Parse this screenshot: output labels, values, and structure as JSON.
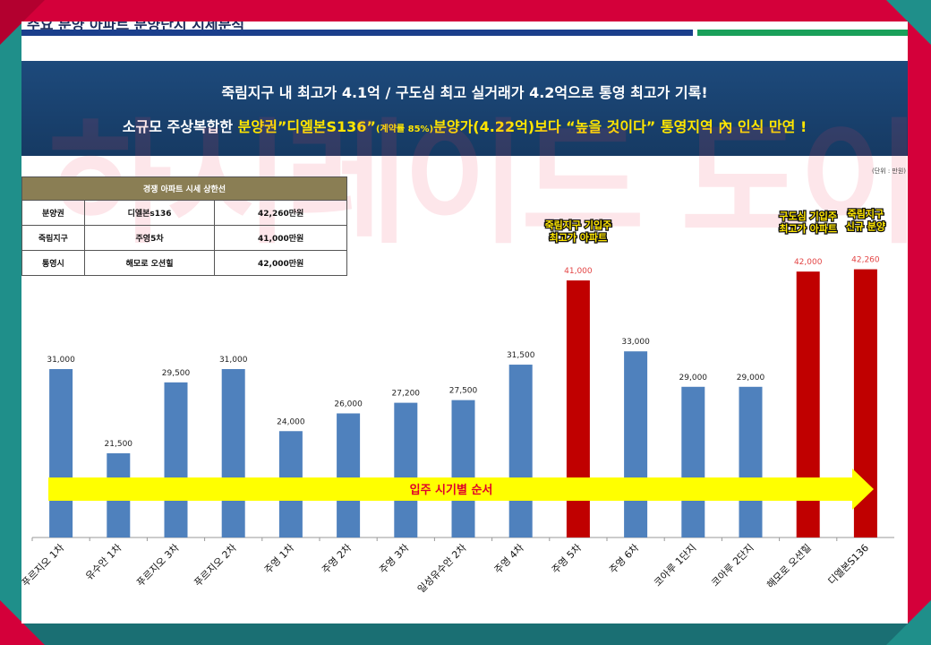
{
  "header": {
    "title": "주요 분양 아파트 분양단지 시세분석"
  },
  "banner": {
    "line1": "죽림지구 내 최고가 4.1억 / 구도심 최고 실거래가 4.2억으로 통영 최고가 기록!",
    "line2_prefix": "소규모 주상복합한 ",
    "line2_highlight": "분양권",
    "line2_name": "”디엘본S136”",
    "line2_small": "(계약률 85%)",
    "line2_mid": "분양가(4.22억)보다 ",
    "line2_quote": "“높을 것이다”",
    "line2_suffix": " 통영지역 內 인식 만연 !"
  },
  "unit_label": "(단위 : 만원)",
  "table": {
    "title": "경쟁 아파트 시세 상한선",
    "rows": [
      {
        "category": "분양권",
        "name": "디엘본s136",
        "price": "42,260만원"
      },
      {
        "category": "죽림지구",
        "name": "주영5차",
        "price": "41,000만원"
      },
      {
        "category": "통영시",
        "name": "해모로 오션힐",
        "price": "42,000만원"
      }
    ]
  },
  "watermark": "하시레이드 도이",
  "chart_data": {
    "type": "bar",
    "categories": [
      "푸르지오 1차",
      "유수안 1차",
      "푸르지오 3차",
      "푸르지오 2차",
      "주영 1차",
      "주영 2차",
      "주영 3차",
      "일성유수안 2차",
      "주영 4차",
      "주영 5차",
      "주영 6차",
      "코아루 1단지",
      "코아루 2단지",
      "해모로 오션힐",
      "디엘본S136"
    ],
    "values": [
      31000,
      21500,
      29500,
      31000,
      24000,
      26000,
      27200,
      27500,
      31500,
      41000,
      33000,
      29000,
      29000,
      42000,
      42260
    ],
    "value_labels": [
      "31,000",
      "21,500",
      "29,500",
      "31,000",
      "24,000",
      "26,000",
      "27,200",
      "27,500",
      "31,500",
      "41,000",
      "33,000",
      "29,000",
      "29,000",
      "42,000",
      "42,260"
    ],
    "highlight": [
      false,
      false,
      false,
      false,
      false,
      false,
      false,
      false,
      false,
      true,
      false,
      false,
      false,
      true,
      true
    ],
    "ylim": [
      12000,
      50000
    ],
    "colors": {
      "normal": "#4f81bd",
      "highlight": "#c00000",
      "highlight_label": "#e34545",
      "normal_label": "#222222"
    },
    "annotations": [
      {
        "category_index": 9,
        "lines": [
          "죽림지구 기입주",
          "최고가 아파트"
        ]
      },
      {
        "category_index": 13,
        "lines": [
          "구도심 기입주",
          "최고가 아파트"
        ]
      },
      {
        "category_index": 14,
        "lines": [
          "죽림지구",
          "신규 분양"
        ]
      }
    ],
    "arrow_label": "입주 시기별 순서",
    "grid": false,
    "legend": "none"
  }
}
